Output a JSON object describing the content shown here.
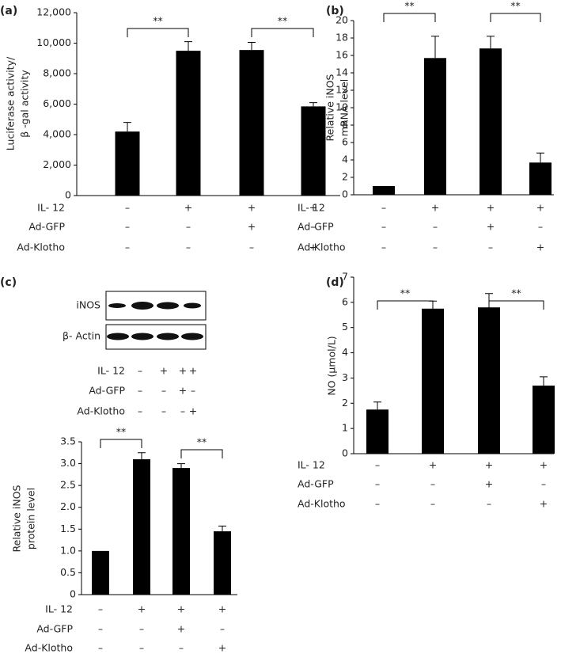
{
  "chart_data": [
    {
      "type": "bar",
      "panel_label": "(a)",
      "ylabel": [
        "Luciferase activity/",
        "β -gal activity"
      ],
      "values": [
        4200,
        9500,
        9550,
        5850
      ],
      "errors": [
        600,
        600,
        500,
        250
      ],
      "color": "#000000",
      "ylim": [
        0,
        12000
      ],
      "yticks": [
        0,
        {
          "value": 2000,
          "label": "2,000"
        },
        {
          "value": 4000,
          "label": "4,000"
        },
        {
          "value": 6000,
          "label": "6,000"
        },
        {
          "value": 8000,
          "label": "8,000"
        },
        {
          "value": 10000,
          "label": "10,000"
        },
        {
          "value": 12000,
          "label": "12,000"
        }
      ],
      "brackets": [
        {
          "label": "**",
          "bars": [
            0,
            1
          ]
        },
        {
          "label": "**",
          "bars": [
            2,
            3
          ]
        }
      ],
      "conditions": [
        {
          "name": "IL- 12",
          "values": [
            "–",
            "+",
            "+",
            "+"
          ]
        },
        {
          "name": "Ad-GFP",
          "values": [
            "–",
            "–",
            "+",
            "–"
          ]
        },
        {
          "name": "Ad-Klotho",
          "values": [
            "–",
            "–",
            "–",
            "+"
          ]
        }
      ]
    },
    {
      "type": "bar",
      "panel_label": "(b)",
      "ylabel": [
        "Relative iNOS",
        "mRNA level"
      ],
      "values": [
        1.0,
        15.7,
        16.8,
        3.7
      ],
      "errors": [
        null,
        2.5,
        1.4,
        1.1
      ],
      "color": "#000000",
      "ylim": [
        0,
        20
      ],
      "yticks": [
        0,
        2,
        4,
        6,
        8,
        10,
        12,
        14,
        16,
        18,
        20
      ],
      "brackets": [
        {
          "label": "**",
          "bars": [
            0,
            1
          ]
        },
        {
          "label": "**",
          "bars": [
            2,
            3
          ]
        }
      ],
      "conditions": [
        {
          "name": "IL- 12",
          "values": [
            "–",
            "+",
            "+",
            "+"
          ]
        },
        {
          "name": "Ad-GFP",
          "values": [
            "–",
            "–",
            "+",
            "–"
          ]
        },
        {
          "name": "Ad-Klotho",
          "values": [
            "–",
            "–",
            "–",
            "+"
          ]
        }
      ]
    },
    {
      "type": "bar",
      "panel_label": "(c)",
      "ylabel": [
        "Relative iNOS",
        "protein level"
      ],
      "blot": {
        "rows": [
          "iNOS",
          "β- Actin"
        ],
        "conditions": [
          {
            "name": "IL- 12",
            "values": [
              "–",
              "+",
              "+",
              "+"
            ]
          },
          {
            "name": "Ad-GFP",
            "values": [
              "–",
              "–",
              "+",
              "–"
            ]
          },
          {
            "name": "Ad-Klotho",
            "values": [
              "–",
              "–",
              "–",
              "+"
            ]
          }
        ]
      },
      "values": [
        1.0,
        3.1,
        2.9,
        1.45
      ],
      "errors": [
        null,
        0.15,
        0.1,
        0.12
      ],
      "color": "#000000",
      "ylim": [
        0,
        3.5
      ],
      "yticks": [
        0,
        0.5,
        {
          "value": 1,
          "label": "1.0"
        },
        1.5,
        {
          "value": 2,
          "label": "2.0"
        },
        2.5,
        {
          "value": 3,
          "label": "3.0"
        },
        3.5
      ],
      "brackets": [
        {
          "label": "**",
          "bars": [
            0,
            1
          ]
        },
        {
          "label": "**",
          "bars": [
            2,
            3
          ]
        }
      ],
      "conditions": [
        {
          "name": "IL- 12",
          "values": [
            "–",
            "+",
            "+",
            "+"
          ]
        },
        {
          "name": "Ad-GFP",
          "values": [
            "–",
            "–",
            "+",
            "–"
          ]
        },
        {
          "name": "Ad-Klotho",
          "values": [
            "–",
            "–",
            "–",
            "+"
          ]
        }
      ]
    },
    {
      "type": "bar",
      "panel_label": "(d)",
      "ylabel": [
        "NO (μmol/L)"
      ],
      "values": [
        1.75,
        5.75,
        5.8,
        2.7
      ],
      "errors": [
        0.3,
        0.3,
        0.55,
        0.35
      ],
      "color": "#000000",
      "ylim": [
        0,
        7
      ],
      "yticks": [
        0,
        1,
        2,
        3,
        4,
        5,
        6,
        7
      ],
      "brackets": [
        {
          "label": "**",
          "bars": [
            0,
            1
          ]
        },
        {
          "label": "**",
          "bars": [
            2,
            3
          ]
        }
      ],
      "conditions": [
        {
          "name": "IL- 12",
          "values": [
            "–",
            "+",
            "+",
            "+"
          ]
        },
        {
          "name": "Ad-GFP",
          "values": [
            "–",
            "–",
            "+",
            "–"
          ]
        },
        {
          "name": "Ad-Klotho",
          "values": [
            "–",
            "–",
            "–",
            "+"
          ]
        }
      ]
    }
  ]
}
